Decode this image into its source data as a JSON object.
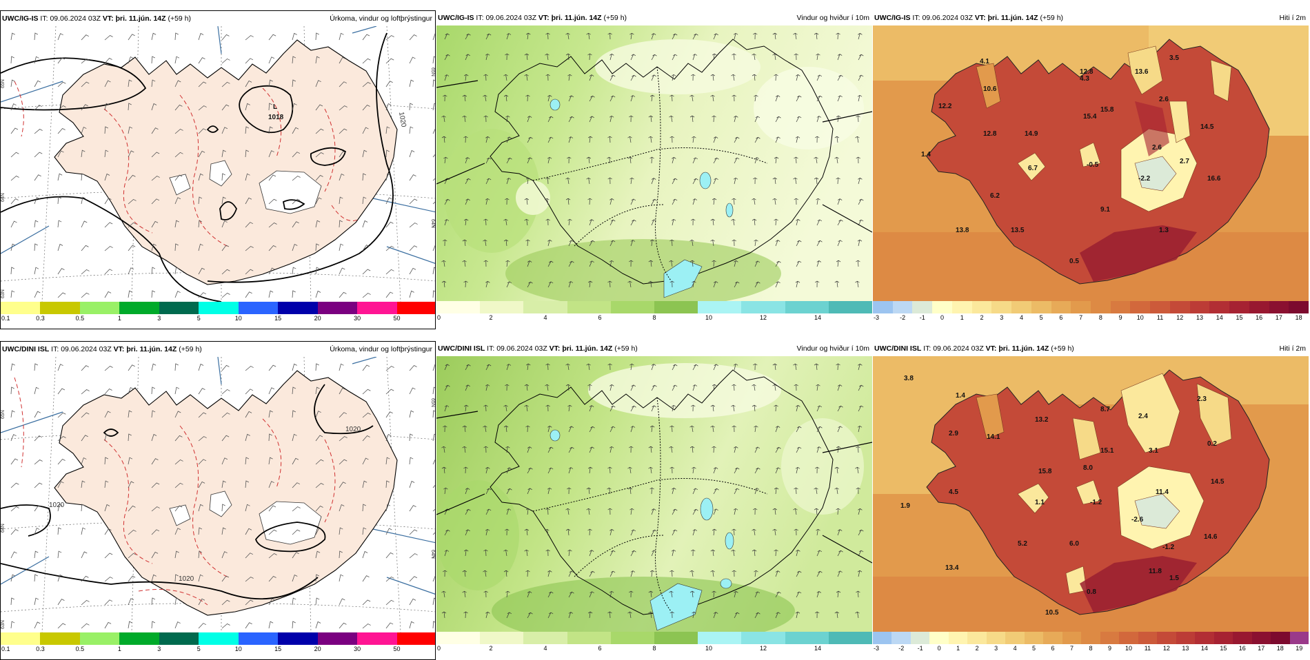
{
  "rows": [
    {
      "model": "UWC/IG-IS",
      "panels": [
        {
          "kind": "precip",
          "it_label": "IT:",
          "it_value": "09.06.2024 03Z",
          "vt_label": "VT:",
          "vt_value": "þri. 11.jún. 14Z",
          "lead": "(+59 h)",
          "title": "Úrkoma, vindur og loftþrýstingur",
          "isobar_labels": [
            "1018",
            "1020"
          ],
          "low_marker": "L",
          "low_value": "1018",
          "lat_labels": [
            "65N",
            "64N",
            "63N"
          ],
          "scale_ticks": [
            "0.1",
            "0.3",
            "0.5",
            "1",
            "3",
            "5",
            "10",
            "15",
            "20",
            "30",
            "50"
          ],
          "scale_colors": [
            "#ffff8c",
            "#c8c800",
            "#99f066",
            "#00aa2a",
            "#006a4e",
            "#00ffe6",
            "#2a64ff",
            "#0000aa",
            "#7a0080",
            "#ff1493",
            "#ff0000"
          ]
        },
        {
          "kind": "wind",
          "it_label": "IT:",
          "it_value": "09.06.2024 03Z",
          "vt_label": "VT:",
          "vt_value": "þri. 11.jún. 14Z",
          "lead": "(+59 h)",
          "title": "Vindur og hviður í 10m",
          "scale_ticks": [
            "0",
            "2",
            "4",
            "6",
            "8",
            "10",
            "12",
            "14"
          ],
          "scale_colors": [
            "#ffffe5",
            "#f0f8c8",
            "#d8eea8",
            "#c2e486",
            "#a8d86a",
            "#8cc452",
            "#aaf4f4",
            "#8ae4e4",
            "#6cd2d0",
            "#4ebab6"
          ]
        },
        {
          "kind": "temp",
          "it_label": "IT:",
          "it_value": "09.06.2024 03Z",
          "vt_label": "VT:",
          "vt_value": "þri. 11.jún. 14Z",
          "lead": "(+59 h)",
          "title": "Hiti í 2m",
          "temp_labels": [
            "4.1",
            "10.6",
            "12.2",
            "12.8",
            "1.4",
            "14.9",
            "12.8",
            "4.3",
            "15.8",
            "15.4",
            "13.6",
            "3.5",
            "2.6",
            "14.5",
            "2.6",
            "2.7",
            "6.7",
            "-0.5",
            "-2.2",
            "16.6",
            "6.2",
            "9.1",
            "13.8",
            "13.5",
            "1.3",
            "0.5"
          ],
          "scale_ticks": [
            "-3",
            "-2",
            "-1",
            "0",
            "1",
            "2",
            "3",
            "4",
            "5",
            "6",
            "7",
            "8",
            "9",
            "10",
            "11",
            "12",
            "13",
            "14",
            "15",
            "16",
            "17",
            "18"
          ],
          "scale_colors": [
            "#9cc4f0",
            "#bcd8f4",
            "#dcead8",
            "#ffffc8",
            "#fff4b0",
            "#fbe89c",
            "#f6da88",
            "#f1cb76",
            "#ecbb66",
            "#e7aa58",
            "#e29a4c",
            "#dd8a44",
            "#d87a40",
            "#d2683c",
            "#cc5a3a",
            "#c44a38",
            "#bc3c36",
            "#b22e34",
            "#a62232",
            "#981830",
            "#8a1030",
            "#7c0a2e"
          ]
        }
      ]
    },
    {
      "model": "UWC/DINI ISL",
      "panels": [
        {
          "kind": "precip",
          "it_label": "IT:",
          "it_value": "09.06.2024 03Z",
          "vt_label": "VT:",
          "vt_value": "þri. 11.jún. 14Z",
          "lead": "(+59 h)",
          "title": "Úrkoma, vindur og loftþrýstingur",
          "isobar_labels": [
            "1020",
            "1020",
            "1020"
          ],
          "lat_labels": [
            "65N",
            "64N",
            "63N"
          ],
          "scale_ticks": [
            "0.1",
            "0.3",
            "0.5",
            "1",
            "3",
            "5",
            "10",
            "15",
            "20",
            "30",
            "50"
          ],
          "scale_colors": [
            "#ffff8c",
            "#c8c800",
            "#99f066",
            "#00aa2a",
            "#006a4e",
            "#00ffe6",
            "#2a64ff",
            "#0000aa",
            "#7a0080",
            "#ff1493",
            "#ff0000"
          ]
        },
        {
          "kind": "wind",
          "it_label": "IT:",
          "it_value": "09.06.2024 03Z",
          "vt_label": "VT:",
          "vt_value": "þri. 11.jún. 14Z",
          "lead": "(+59 h)",
          "title": "Vindur og hviður í 10m",
          "scale_ticks": [
            "0",
            "2",
            "4",
            "6",
            "8",
            "10",
            "12",
            "14"
          ],
          "scale_colors": [
            "#ffffe5",
            "#f0f8c8",
            "#d8eea8",
            "#c2e486",
            "#a8d86a",
            "#8cc452",
            "#aaf4f4",
            "#8ae4e4",
            "#6cd2d0",
            "#4ebab6"
          ]
        },
        {
          "kind": "temp",
          "it_label": "IT:",
          "it_value": "09.06.2024 03Z",
          "vt_label": "VT:",
          "vt_value": "þri. 11.jún. 14Z",
          "lead": "(+59 h)",
          "title": "Hiti í 2m",
          "temp_labels": [
            "3.8",
            "1.4",
            "2.9",
            "14.1",
            "13.2",
            "8.7",
            "2.4",
            "2.3",
            "15.8",
            "8.0",
            "15.1",
            "3.1",
            "0.2",
            "4.5",
            "1.9",
            "1.1",
            "-1.2",
            "11.4",
            "14.5",
            "-2.6",
            "14.6",
            "5.2",
            "6.0",
            "-1.2",
            "13.4",
            "11.8",
            "1.5",
            "0.8",
            "10.5"
          ],
          "scale_ticks": [
            "-3",
            "-2",
            "-1",
            "0",
            "1",
            "2",
            "3",
            "4",
            "5",
            "6",
            "7",
            "8",
            "9",
            "10",
            "11",
            "12",
            "13",
            "14",
            "15",
            "16",
            "17",
            "18",
            "19"
          ],
          "scale_colors": [
            "#9cc4f0",
            "#bcd8f4",
            "#dcead8",
            "#ffffc8",
            "#fff4b0",
            "#fbe89c",
            "#f6da88",
            "#f1cb76",
            "#ecbb66",
            "#e7aa58",
            "#e29a4c",
            "#dd8a44",
            "#d87a40",
            "#d2683c",
            "#cc5a3a",
            "#c44a38",
            "#bc3c36",
            "#b22e34",
            "#a62232",
            "#981830",
            "#8a1030",
            "#7c0a2e",
            "#9a3a8a"
          ]
        }
      ]
    }
  ]
}
